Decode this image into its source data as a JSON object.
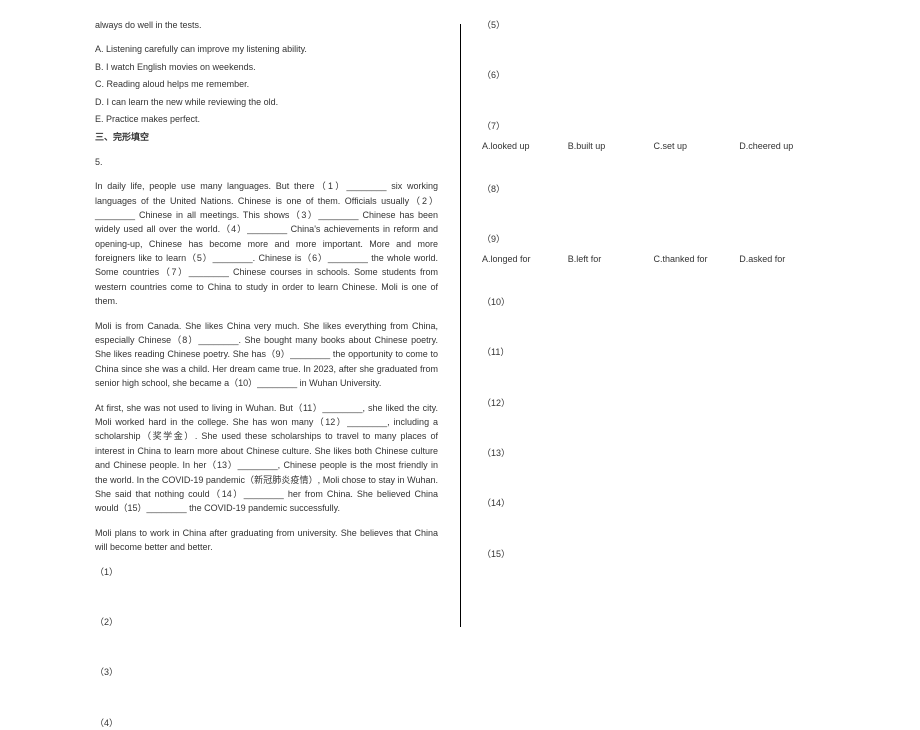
{
  "left": {
    "lead_in": "always do well in the tests.",
    "options": [
      "A. Listening carefully can improve my listening ability.",
      "B. I watch English movies on weekends.",
      "C. Reading aloud helps me remember.",
      "D. I can learn the new while reviewing the old.",
      "E. Practice makes perfect."
    ],
    "section_title": "三、完形填空",
    "q_number": "5.",
    "para1": "In daily life, people use many languages. But there（1）________ six working languages of the United Nations. Chinese is one of them. Officials usually（2）________ Chinese in all meetings. This shows（3）________ Chinese has been widely used all over the world.（4）________ China's achievements in reform and opening-up, Chinese has become more and more important. More and more foreigners like to learn（5）________. Chinese is（6）________ the whole world. Some countries（7）________ Chinese courses in schools. Some students from western countries come to China to study in order to learn Chinese. Moli is one of them.",
    "para2": "Moli is from Canada. She likes China very much. She likes everything from China, especially Chinese（8）________. She bought many books about Chinese poetry. She likes reading Chinese poetry. She has（9）________ the opportunity to come to China since she was a child. Her dream came true. In 2023, after she graduated from senior high school, she became a（10）________ in Wuhan University.",
    "para3": "At first, she was not used to living in Wuhan. But（11）________, she liked the city. Moli worked hard in the college. She has won many（12）________, including a scholarship（奖学金）. She used these scholarships to travel to many places of interest in China to learn more about Chinese culture. She likes both Chinese culture and Chinese people. In her（13）________, Chinese people is the most friendly in the world. In the COVID-19 pandemic（新冠肺炎疫情）, Moli chose to stay in Wuhan. She said that nothing could（14）________ her from China. She believed China would（15）________ the COVID-19 pandemic successfully.",
    "para4": "Moli plans to work in China after graduating from university. She believes that China will become better and better.",
    "blanks": [
      "（1）",
      "（2）",
      "（3）",
      "（4）"
    ]
  },
  "right": {
    "blanks_plain": [
      "（5）",
      "（6）",
      "（7）",
      "（8）"
    ],
    "q7": {
      "options": [
        "A.looked up",
        "B.built up",
        "C.set up",
        "D.cheered up"
      ]
    },
    "q9": {
      "num": "（9）",
      "options": [
        "A.longed for",
        "B.left for",
        "C.thanked for",
        "D.asked for"
      ]
    },
    "blanks_tail": [
      "（10）",
      "（11）",
      "（12）",
      "（13）",
      "（14）",
      "（15）"
    ]
  }
}
